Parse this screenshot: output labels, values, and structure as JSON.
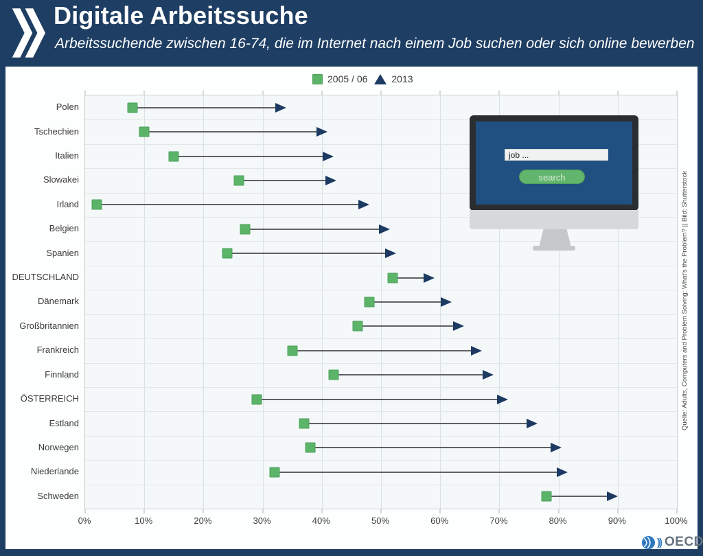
{
  "header": {
    "title": "Digitale Arbeitssuche",
    "subtitle": "Arbeitssuchende zwischen 16-74, die im Internet nach einem Job suchen oder sich online bewerben"
  },
  "legend": {
    "series_2005_label": "2005 / 06",
    "series_2013_label": "2013"
  },
  "chart_data": {
    "type": "dumbbell",
    "title": "Digitale Arbeitssuche",
    "subtitle": "Arbeitssuchende zwischen 16-74, die im Internet nach einem Job suchen oder sich online bewerben",
    "categories": [
      "Polen",
      "Tschechien",
      "Italien",
      "Slowakei",
      "Irland",
      "Belgien",
      "Spanien",
      "DEUTSCHLAND",
      "Dänemark",
      "Großbritannien",
      "Frankreich",
      "Finnland",
      "ÖSTERREICH",
      "Estland",
      "Norwegen",
      "Niederlande",
      "Schweden"
    ],
    "series": [
      {
        "name": "2005 / 06",
        "marker": "square",
        "color": "#5cb469",
        "values": [
          8,
          10,
          15,
          26,
          2,
          27,
          24,
          52,
          48,
          46,
          35,
          42,
          29,
          37,
          38,
          32,
          78
        ]
      },
      {
        "name": "2013",
        "marker": "arrow",
        "color": "#1c3a62",
        "values": [
          34,
          41,
          42,
          42.5,
          48,
          51.5,
          52.5,
          59,
          62,
          64,
          67,
          69,
          71.5,
          76.5,
          80.5,
          81.5,
          90
        ]
      }
    ],
    "xlim": [
      0,
      100
    ],
    "x_tick_labels": [
      "0%",
      "10%",
      "20%",
      "30%",
      "40%",
      "50%",
      "60%",
      "70%",
      "80%",
      "90%",
      "100%"
    ],
    "grid": true,
    "legend_position": "top",
    "unit": "%"
  },
  "monitor": {
    "search_query": "job ...",
    "search_button_label": "search"
  },
  "source_note": "Quelle: Adults, Computers and Problem Solving: What's the Problem? || Bild: Shutterstock",
  "oecd_logo_text": "OECD",
  "colors": {
    "header_bg": "#1e3e63",
    "screen_blue": "#205081",
    "green_2005": "#5cb469",
    "navy_2013": "#1c3a62",
    "connector_gray": "#5d6163",
    "plot_bg": "#f4f8f9"
  }
}
